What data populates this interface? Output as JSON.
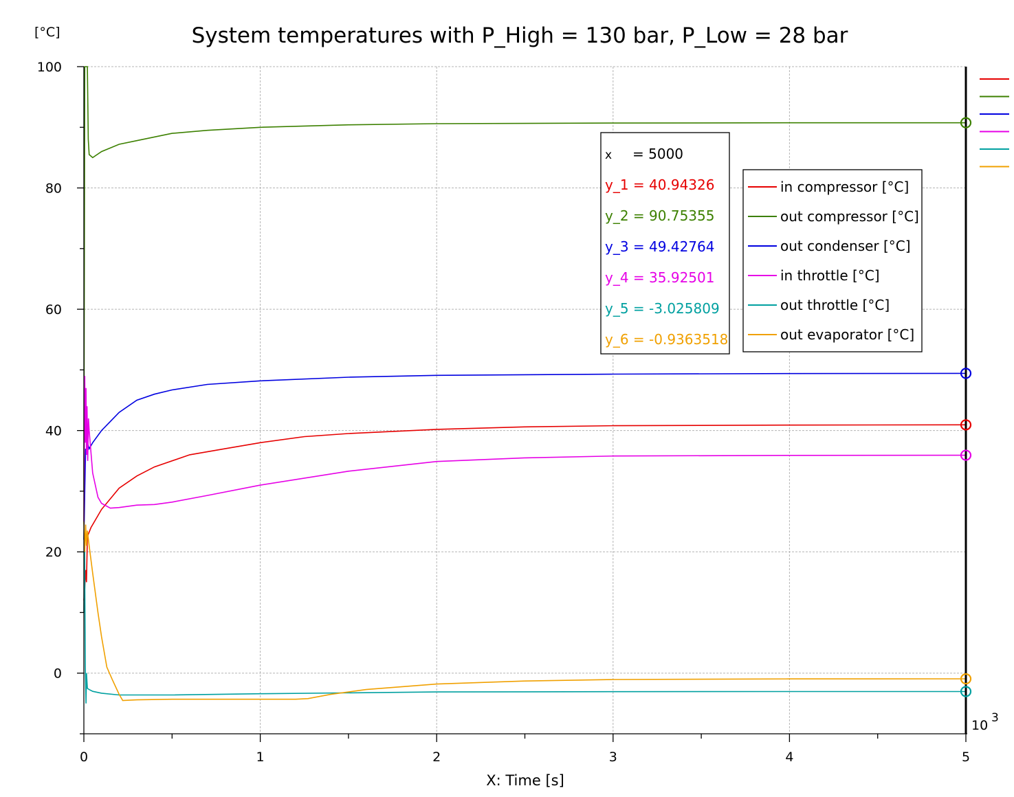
{
  "chart_data": {
    "type": "line",
    "title": "System temperatures with P_High = 130 bar, P_Low = 28 bar",
    "y_unit_label": "[°C]",
    "xlabel": "X: Time [s]",
    "x_scale_label": "10",
    "x_scale_exp": "3",
    "xlim": [
      0,
      5000
    ],
    "ylim": [
      -10,
      100
    ],
    "x_ticks": [
      0,
      1000,
      2000,
      3000,
      4000,
      5000
    ],
    "x_tick_labels": [
      "0",
      "1",
      "2",
      "3",
      "4",
      "5"
    ],
    "y_ticks": [
      0,
      20,
      40,
      60,
      80,
      100
    ],
    "y_tick_labels": [
      "0",
      "20",
      "40",
      "60",
      "80",
      "100"
    ],
    "grid": true,
    "legend_position": "upper-right-inside",
    "cursor": {
      "x_label": "x",
      "x_value": "= 5000",
      "readouts": [
        {
          "label": "y_1 = 40.94326",
          "color": "#e60000"
        },
        {
          "label": "y_2 = 90.75355",
          "color": "#3c8000"
        },
        {
          "label": "y_3 = 49.42764",
          "color": "#0000e0"
        },
        {
          "label": "y_4 = 35.92501",
          "color": "#e600e6"
        },
        {
          "label": "y_5 = -3.025809",
          "color": "#00a0a0"
        },
        {
          "label": "y_6 = -0.9363518",
          "color": "#f0a000"
        }
      ]
    },
    "series": [
      {
        "name": "in compressor [°C]",
        "color": "#e60000",
        "x": [
          0,
          5,
          10,
          15,
          20,
          40,
          100,
          200,
          300,
          400,
          600,
          800,
          1000,
          1250,
          1500,
          2000,
          2500,
          3000,
          4000,
          5000
        ],
        "y": [
          12,
          14,
          17,
          15,
          22.5,
          24,
          27,
          30.5,
          32.5,
          34,
          36,
          37,
          38,
          39,
          39.5,
          40.2,
          40.6,
          40.8,
          40.9,
          40.94
        ]
      },
      {
        "name": "out compressor [°C]",
        "color": "#3c8000",
        "x": [
          0,
          5,
          10,
          15,
          20,
          25,
          30,
          50,
          100,
          200,
          300,
          500,
          700,
          1000,
          1500,
          2000,
          3000,
          4000,
          5000
        ],
        "y": [
          30,
          100,
          100,
          100,
          100,
          88,
          85.5,
          85,
          86,
          87.2,
          87.8,
          89,
          89.5,
          90,
          90.4,
          90.6,
          90.7,
          90.75,
          90.75
        ]
      },
      {
        "name": "out condenser [°C]",
        "color": "#0000e0",
        "x": [
          0,
          5,
          10,
          15,
          20,
          30,
          50,
          100,
          150,
          200,
          300,
          400,
          500,
          700,
          1000,
          1500,
          2000,
          3000,
          4000,
          5000
        ],
        "y": [
          22,
          30,
          37,
          36,
          38,
          37,
          38,
          40,
          41.5,
          43,
          45,
          46,
          46.7,
          47.6,
          48.2,
          48.8,
          49.1,
          49.3,
          49.4,
          49.43
        ]
      },
      {
        "name": "in throttle [°C]",
        "color": "#e600e6",
        "x": [
          0,
          5,
          8,
          12,
          15,
          18,
          22,
          26,
          30,
          50,
          80,
          100,
          150,
          200,
          300,
          400,
          500,
          700,
          1000,
          1500,
          2000,
          2500,
          3000,
          4000,
          5000
        ],
        "y": [
          25,
          49,
          38,
          47,
          36,
          44,
          35,
          42,
          40,
          33,
          29,
          28,
          27.2,
          27.3,
          27.7,
          27.8,
          28.2,
          29.3,
          31,
          33.3,
          34.9,
          35.5,
          35.8,
          35.9,
          35.93
        ]
      },
      {
        "name": "out throttle [°C]",
        "color": "#00a0a0",
        "x": [
          0,
          4,
          8,
          12,
          15,
          20,
          30,
          50,
          100,
          200,
          300,
          500,
          1000,
          2000,
          3000,
          4000,
          5000
        ],
        "y": [
          10,
          22,
          1,
          -5,
          0,
          -2.5,
          -2.7,
          -3,
          -3.3,
          -3.6,
          -3.6,
          -3.6,
          -3.4,
          -3.1,
          -3.05,
          -3.03,
          -3.03
        ]
      },
      {
        "name": "out evaporator [°C]",
        "color": "#f0a000",
        "x": [
          0,
          5,
          10,
          15,
          20,
          30,
          50,
          80,
          100,
          130,
          160,
          200,
          220,
          300,
          500,
          800,
          1000,
          1200,
          1270,
          1400,
          1600,
          2000,
          2500,
          3000,
          4000,
          5000
        ],
        "y": [
          25,
          20,
          24.5,
          21,
          23.5,
          21,
          16.5,
          10,
          6,
          1,
          -1,
          -3.5,
          -4.5,
          -4.4,
          -4.3,
          -4.3,
          -4.3,
          -4.3,
          -4.2,
          -3.5,
          -2.7,
          -1.8,
          -1.3,
          -1.05,
          -0.95,
          -0.94
        ]
      }
    ]
  }
}
